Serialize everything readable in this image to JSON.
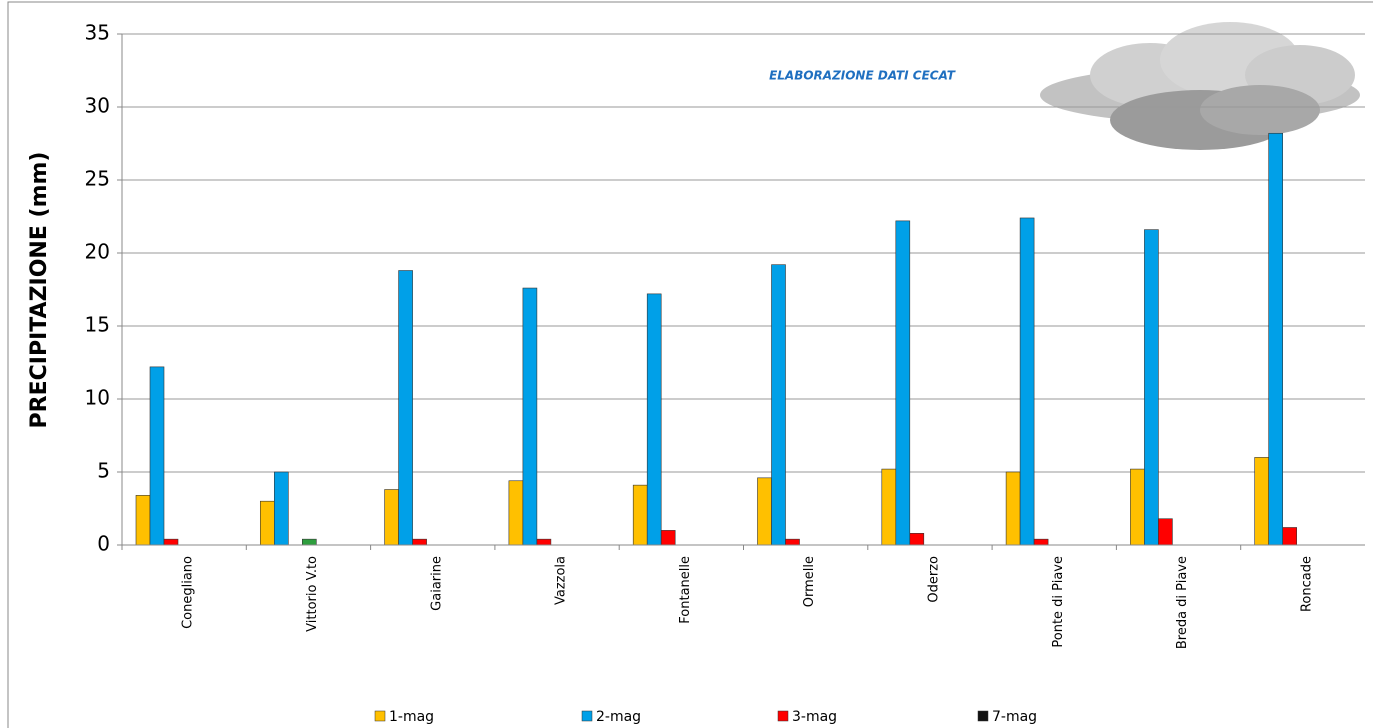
{
  "chart_data": {
    "type": "bar",
    "annotation": "ELABORAZIONE DATI CECAT",
    "y_label": "PRECIPITAZIONE (mm)",
    "categories": [
      "Conegliano",
      "Vittorio V.to",
      "Gaiarine",
      "Vazzola",
      "Fontanelle",
      "Ormelle",
      "Oderzo",
      "Ponte di Piave",
      "Breda di Piave",
      "Roncade"
    ],
    "series": [
      {
        "name": "1-mag",
        "color": "#ffc000",
        "values": [
          3.4,
          3.0,
          3.8,
          4.4,
          4.1,
          4.6,
          5.2,
          5.0,
          5.2,
          6.0
        ]
      },
      {
        "name": "2-mag",
        "color": "#00a0e8",
        "values": [
          12.2,
          5.0,
          18.8,
          17.6,
          17.2,
          19.2,
          22.2,
          22.4,
          21.6,
          28.2
        ]
      },
      {
        "name": "3-mag",
        "color": "#ff0000",
        "values": [
          0.4,
          0,
          0.4,
          0.4,
          1.0,
          0.4,
          0.8,
          0.4,
          1.8,
          1.2
        ]
      },
      {
        "name": "7-mag",
        "color": "#111111",
        "colors": [
          "#111111",
          "#2e9e3e",
          "#111111",
          "#111111",
          "#111111",
          "#111111",
          "#111111",
          "#111111",
          "#111111",
          "#111111"
        ],
        "values": [
          0,
          0.4,
          0,
          0,
          0,
          0,
          0,
          0,
          0,
          0
        ]
      }
    ],
    "ylim": [
      0,
      35
    ],
    "yticks": [
      0,
      5,
      10,
      15,
      20,
      25,
      30,
      35
    ],
    "grid": true,
    "legend": "bottom"
  }
}
